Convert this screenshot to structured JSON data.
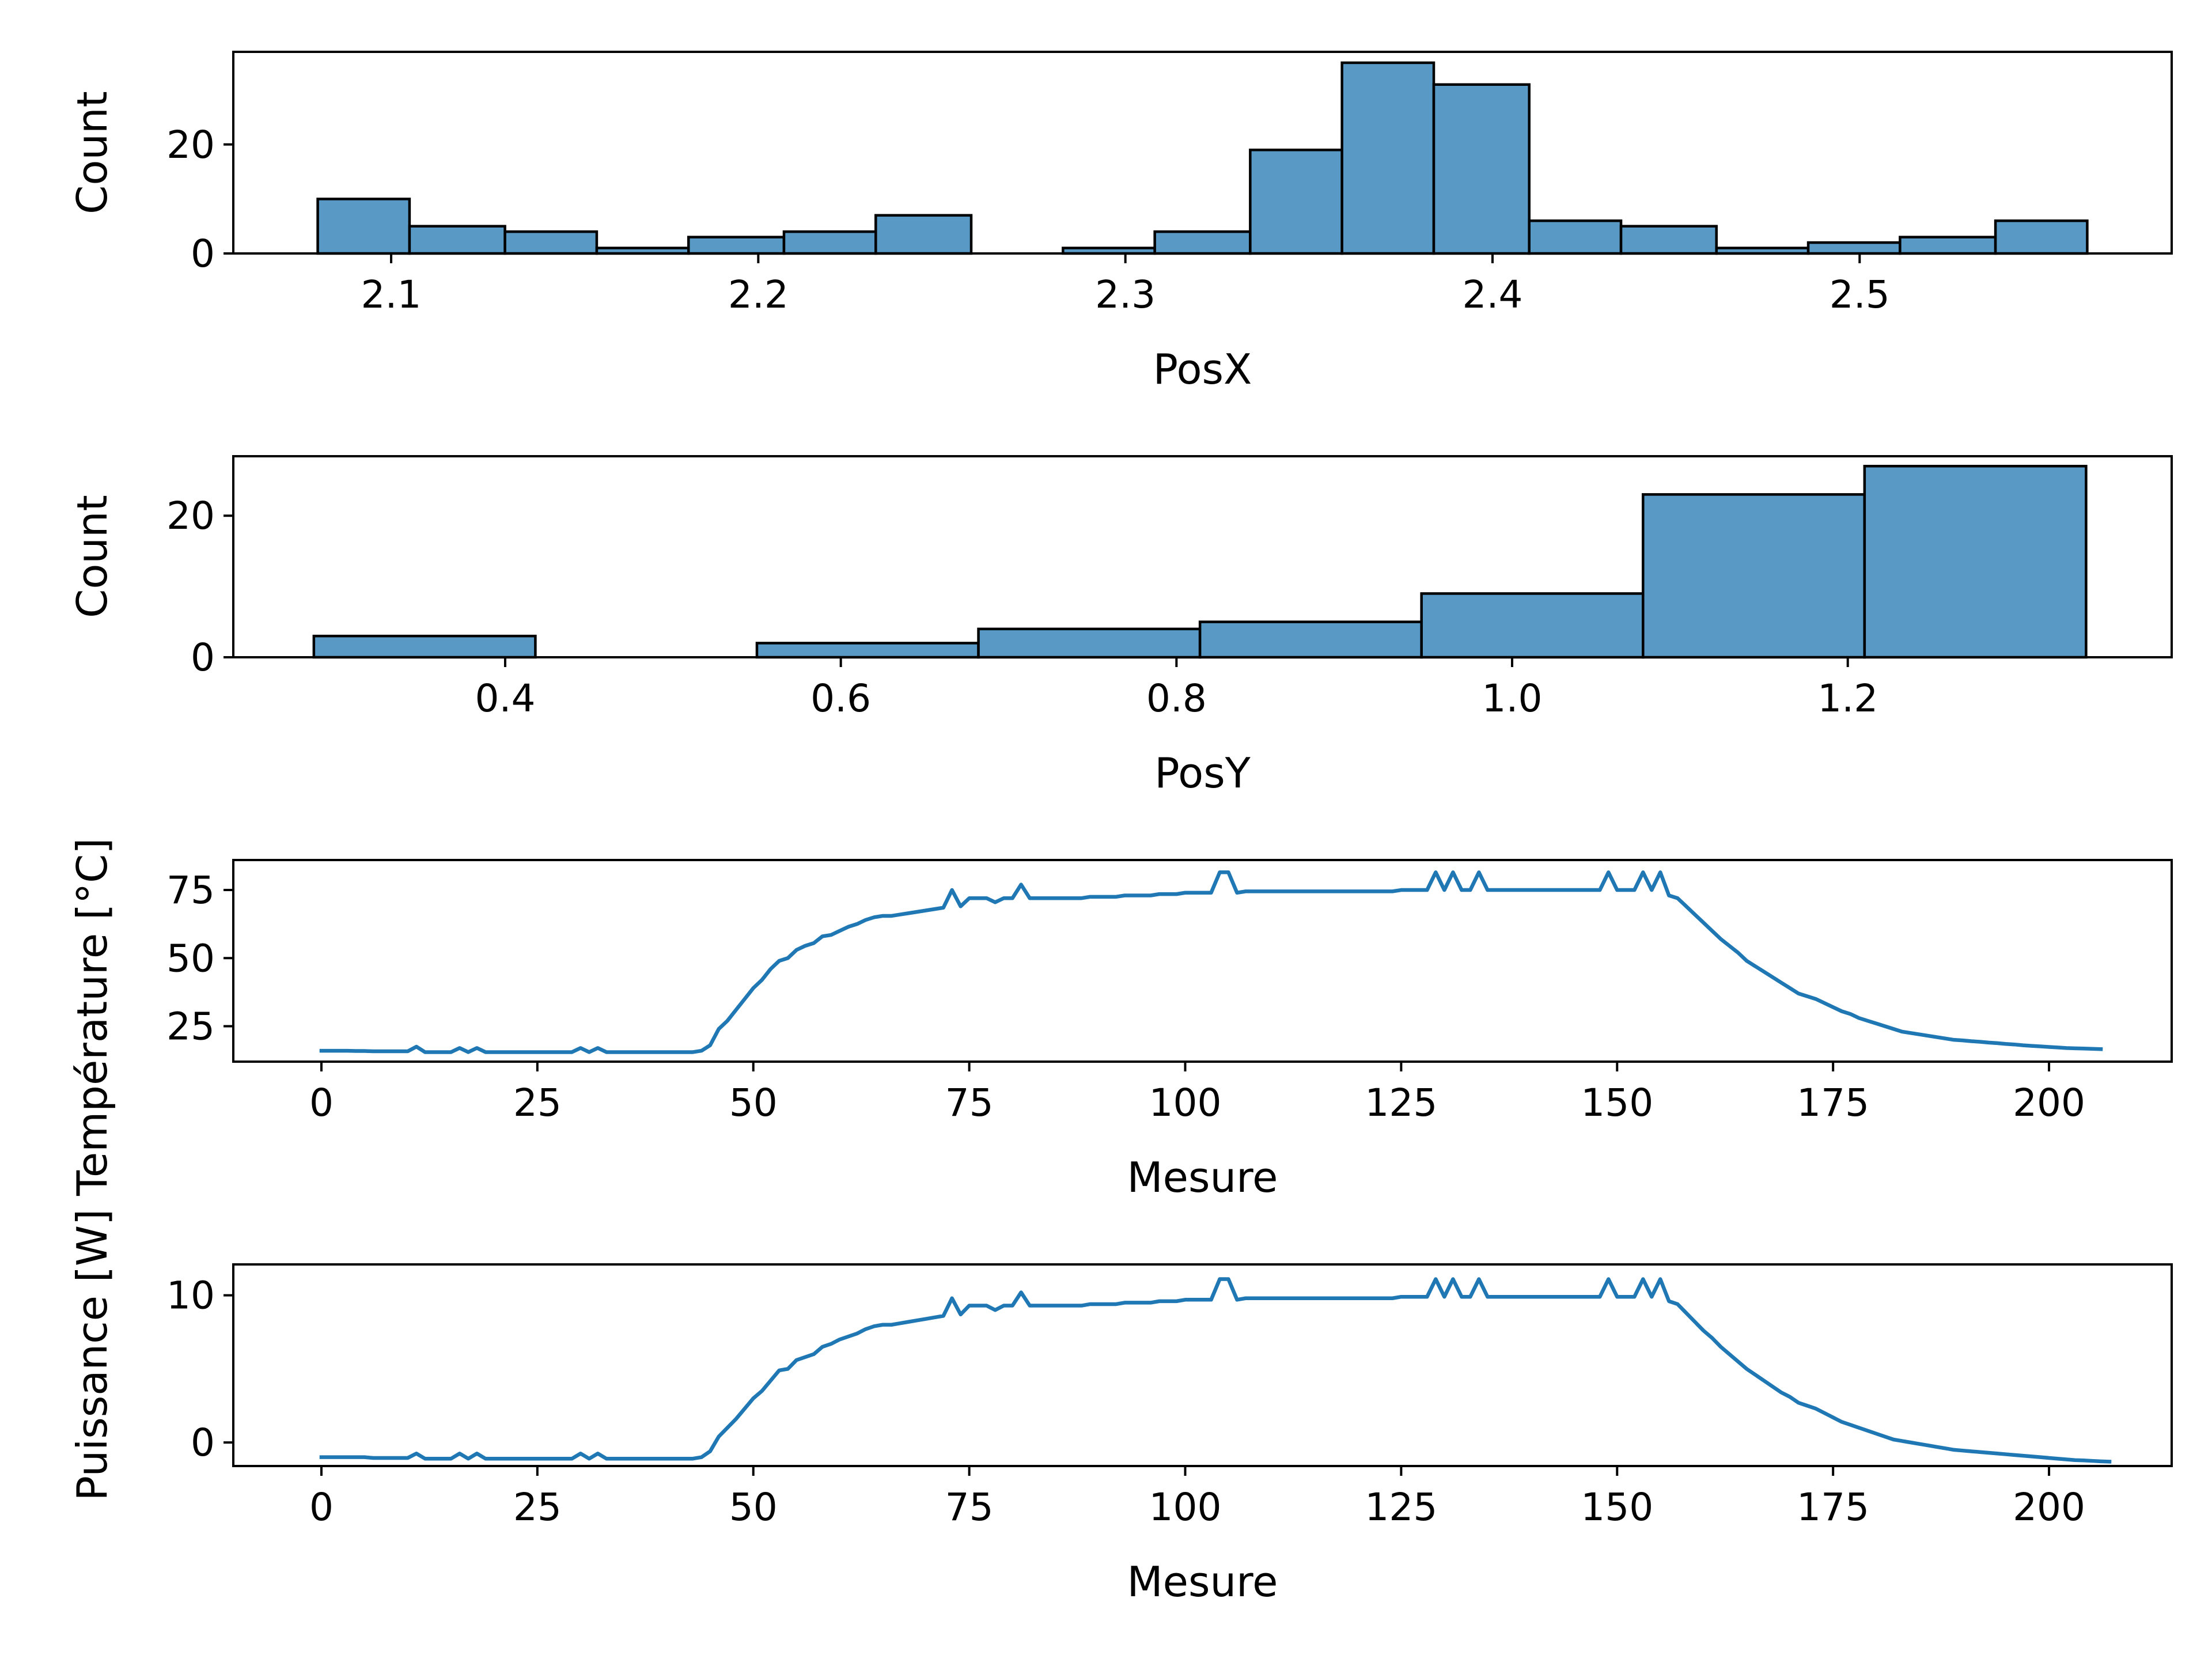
{
  "chart_data": [
    {
      "type": "bar",
      "subtype": "histogram",
      "xlabel": "PosX",
      "ylabel": "Count",
      "xlim": [
        2.057,
        2.585
      ],
      "ylim": [
        0,
        37
      ],
      "xticks": [
        2.1,
        2.2,
        2.3,
        2.4,
        2.5
      ],
      "xtick_labels": [
        "2.1",
        "2.2",
        "2.3",
        "2.4",
        "2.5"
      ],
      "yticks": [
        0,
        20
      ],
      "ytick_labels": [
        "0",
        "20"
      ],
      "grid": false,
      "color": "#5899c6",
      "edge_color": "#000000",
      "bins": [
        {
          "x0": 2.08,
          "x1": 2.105,
          "count": 10
        },
        {
          "x0": 2.105,
          "x1": 2.131,
          "count": 5
        },
        {
          "x0": 2.131,
          "x1": 2.156,
          "count": 4
        },
        {
          "x0": 2.156,
          "x1": 2.181,
          "count": 1
        },
        {
          "x0": 2.181,
          "x1": 2.207,
          "count": 3
        },
        {
          "x0": 2.207,
          "x1": 2.232,
          "count": 4
        },
        {
          "x0": 2.232,
          "x1": 2.258,
          "count": 7
        },
        {
          "x0": 2.258,
          "x1": 2.283,
          "count": 0
        },
        {
          "x0": 2.283,
          "x1": 2.308,
          "count": 1
        },
        {
          "x0": 2.308,
          "x1": 2.334,
          "count": 4
        },
        {
          "x0": 2.334,
          "x1": 2.359,
          "count": 19
        },
        {
          "x0": 2.359,
          "x1": 2.384,
          "count": 35
        },
        {
          "x0": 2.384,
          "x1": 2.41,
          "count": 31
        },
        {
          "x0": 2.41,
          "x1": 2.435,
          "count": 6
        },
        {
          "x0": 2.435,
          "x1": 2.461,
          "count": 5
        },
        {
          "x0": 2.461,
          "x1": 2.486,
          "count": 1
        },
        {
          "x0": 2.486,
          "x1": 2.511,
          "count": 2
        },
        {
          "x0": 2.511,
          "x1": 2.537,
          "count": 3
        },
        {
          "x0": 2.537,
          "x1": 2.562,
          "count": 6
        }
      ]
    },
    {
      "type": "bar",
      "subtype": "histogram",
      "xlabel": "PosY",
      "ylabel": "Count",
      "xlim": [
        0.238,
        1.393
      ],
      "ylim": [
        0,
        28.4
      ],
      "xticks": [
        0.4,
        0.6,
        0.8,
        1.0,
        1.2
      ],
      "xtick_labels": [
        "0.4",
        "0.6",
        "0.8",
        "1.0",
        "1.2"
      ],
      "yticks": [
        0,
        20
      ],
      "ytick_labels": [
        "0",
        "20"
      ],
      "grid": false,
      "color": "#5899c6",
      "edge_color": "#000000",
      "bins": [
        {
          "x0": 0.286,
          "x1": 0.418,
          "count": 3
        },
        {
          "x0": 0.418,
          "x1": 0.55,
          "count": 0
        },
        {
          "x0": 0.55,
          "x1": 0.682,
          "count": 2
        },
        {
          "x0": 0.682,
          "x1": 0.814,
          "count": 4
        },
        {
          "x0": 0.814,
          "x1": 0.946,
          "count": 5
        },
        {
          "x0": 0.946,
          "x1": 1.078,
          "count": 9
        },
        {
          "x0": 1.078,
          "x1": 1.21,
          "count": 23
        },
        {
          "x0": 1.21,
          "x1": 1.342,
          "count": 27
        }
      ]
    },
    {
      "type": "line",
      "xlabel": "Mesure",
      "ylabel": "Température [$^\\circ$C]",
      "xlim": [
        -10.2,
        214.2
      ],
      "ylim": [
        12.0,
        86.0
      ],
      "xticks": [
        0,
        25,
        50,
        75,
        100,
        125,
        150,
        175,
        200
      ],
      "xtick_labels": [
        "0",
        "25",
        "50",
        "75",
        "100",
        "125",
        "150",
        "175",
        "200"
      ],
      "yticks": [
        25,
        50,
        75
      ],
      "ytick_labels": [
        "25",
        "50",
        "75"
      ],
      "grid": false,
      "color": "#1f77b4",
      "series": [
        {
          "x_start": 0,
          "x_step": 1,
          "values": [
            16.0,
            16.0,
            16.0,
            16.0,
            15.9,
            15.9,
            15.8,
            15.8,
            15.8,
            15.8,
            15.8,
            17.5,
            15.5,
            15.5,
            15.5,
            15.5,
            17.0,
            15.5,
            17.0,
            15.5,
            15.5,
            15.5,
            15.5,
            15.5,
            15.5,
            15.5,
            15.5,
            15.5,
            15.5,
            15.5,
            17.0,
            15.5,
            17.0,
            15.5,
            15.5,
            15.5,
            15.5,
            15.5,
            15.5,
            15.5,
            15.5,
            15.5,
            15.5,
            15.5,
            16.0,
            18.0,
            24.0,
            27.0,
            31.0,
            35.0,
            39.0,
            42.0,
            46.0,
            49.0,
            50.0,
            53.0,
            54.5,
            55.5,
            58.0,
            58.5,
            60.0,
            61.5,
            62.5,
            64.0,
            65.0,
            65.5,
            65.5,
            66.0,
            66.5,
            67.0,
            67.5,
            68.0,
            68.5,
            75.0,
            69.0,
            72.0,
            72.0,
            72.0,
            70.5,
            72.0,
            72.0,
            77.0,
            72.0,
            72.0,
            72.0,
            72.0,
            72.0,
            72.0,
            72.0,
            72.5,
            72.5,
            72.5,
            72.5,
            73.0,
            73.0,
            73.0,
            73.0,
            73.5,
            73.5,
            73.5,
            74.0,
            74.0,
            74.0,
            74.0,
            81.5,
            81.5,
            74.0,
            74.5,
            74.5,
            74.5,
            74.5,
            74.5,
            74.5,
            74.5,
            74.5,
            74.5,
            74.5,
            74.5,
            74.5,
            74.5,
            74.5,
            74.5,
            74.5,
            74.5,
            74.5,
            75.0,
            75.0,
            75.0,
            75.0,
            81.5,
            75.0,
            81.5,
            75.0,
            75.0,
            81.5,
            75.0,
            75.0,
            75.0,
            75.0,
            75.0,
            75.0,
            75.0,
            75.0,
            75.0,
            75.0,
            75.0,
            75.0,
            75.0,
            75.0,
            81.5,
            75.0,
            75.0,
            75.0,
            81.5,
            75.0,
            81.5,
            73.0,
            72.0,
            69.0,
            66.0,
            63.0,
            60.0,
            57.0,
            54.5,
            52.0,
            49.0,
            47.0,
            45.0,
            43.0,
            41.0,
            39.0,
            37.0,
            36.0,
            35.0,
            33.5,
            32.0,
            30.5,
            29.5,
            28.0,
            27.0,
            26.0,
            25.0,
            24.0,
            23.0,
            22.5,
            22.0,
            21.5,
            21.0,
            20.5,
            20.0,
            19.8,
            19.5,
            19.3,
            19.0,
            18.8,
            18.5,
            18.3,
            18.0,
            17.8,
            17.6,
            17.4,
            17.2,
            17.0,
            16.9,
            16.8,
            16.7,
            16.6
          ]
        }
      ]
    },
    {
      "type": "line",
      "xlabel": "Mesure",
      "ylabel": "Puissance [W]",
      "xlim": [
        -10.2,
        214.2
      ],
      "ylim": [
        -1.6,
        12.1
      ],
      "xticks": [
        0,
        25,
        50,
        75,
        100,
        125,
        150,
        175,
        200
      ],
      "xtick_labels": [
        "0",
        "25",
        "50",
        "75",
        "100",
        "125",
        "150",
        "175",
        "200"
      ],
      "yticks": [
        0,
        10
      ],
      "ytick_labels": [
        "0",
        "10"
      ],
      "grid": false,
      "color": "#1f77b4",
      "series": [
        {
          "x_start": 0,
          "x_step": 1,
          "values": [
            -1.0,
            -1.0,
            -1.0,
            -1.0,
            -1.0,
            -1.0,
            -1.05,
            -1.05,
            -1.05,
            -1.05,
            -1.05,
            -0.75,
            -1.1,
            -1.1,
            -1.1,
            -1.1,
            -0.75,
            -1.1,
            -0.75,
            -1.1,
            -1.1,
            -1.1,
            -1.1,
            -1.1,
            -1.1,
            -1.1,
            -1.1,
            -1.1,
            -1.1,
            -1.1,
            -0.75,
            -1.1,
            -0.75,
            -1.1,
            -1.1,
            -1.1,
            -1.1,
            -1.1,
            -1.1,
            -1.1,
            -1.1,
            -1.1,
            -1.1,
            -1.1,
            -1.0,
            -0.6,
            0.4,
            1.0,
            1.6,
            2.3,
            3.0,
            3.5,
            4.2,
            4.9,
            5.0,
            5.6,
            5.8,
            6.0,
            6.5,
            6.7,
            7.0,
            7.2,
            7.4,
            7.7,
            7.9,
            8.0,
            8.0,
            8.1,
            8.2,
            8.3,
            8.4,
            8.5,
            8.6,
            9.8,
            8.7,
            9.3,
            9.3,
            9.3,
            9.0,
            9.3,
            9.3,
            10.2,
            9.3,
            9.3,
            9.3,
            9.3,
            9.3,
            9.3,
            9.3,
            9.4,
            9.4,
            9.4,
            9.4,
            9.5,
            9.5,
            9.5,
            9.5,
            9.6,
            9.6,
            9.6,
            9.7,
            9.7,
            9.7,
            9.7,
            11.1,
            11.1,
            9.7,
            9.8,
            9.8,
            9.8,
            9.8,
            9.8,
            9.8,
            9.8,
            9.8,
            9.8,
            9.8,
            9.8,
            9.8,
            9.8,
            9.8,
            9.8,
            9.8,
            9.8,
            9.8,
            9.9,
            9.9,
            9.9,
            9.9,
            11.1,
            9.9,
            11.1,
            9.9,
            9.9,
            11.1,
            9.9,
            9.9,
            9.9,
            9.9,
            9.9,
            9.9,
            9.9,
            9.9,
            9.9,
            9.9,
            9.9,
            9.9,
            9.9,
            9.9,
            11.1,
            9.9,
            9.9,
            9.9,
            11.1,
            9.9,
            11.1,
            9.6,
            9.4,
            8.8,
            8.2,
            7.6,
            7.1,
            6.5,
            6.0,
            5.5,
            5.0,
            4.6,
            4.2,
            3.8,
            3.4,
            3.1,
            2.7,
            2.5,
            2.3,
            2.0,
            1.7,
            1.4,
            1.2,
            1.0,
            0.8,
            0.6,
            0.4,
            0.2,
            0.1,
            0.0,
            -0.1,
            -0.2,
            -0.3,
            -0.4,
            -0.5,
            -0.55,
            -0.6,
            -0.65,
            -0.7,
            -0.75,
            -0.8,
            -0.85,
            -0.9,
            -0.95,
            -1.0,
            -1.05,
            -1.1,
            -1.15,
            -1.2,
            -1.22,
            -1.25,
            -1.28,
            -1.3
          ]
        }
      ]
    }
  ]
}
